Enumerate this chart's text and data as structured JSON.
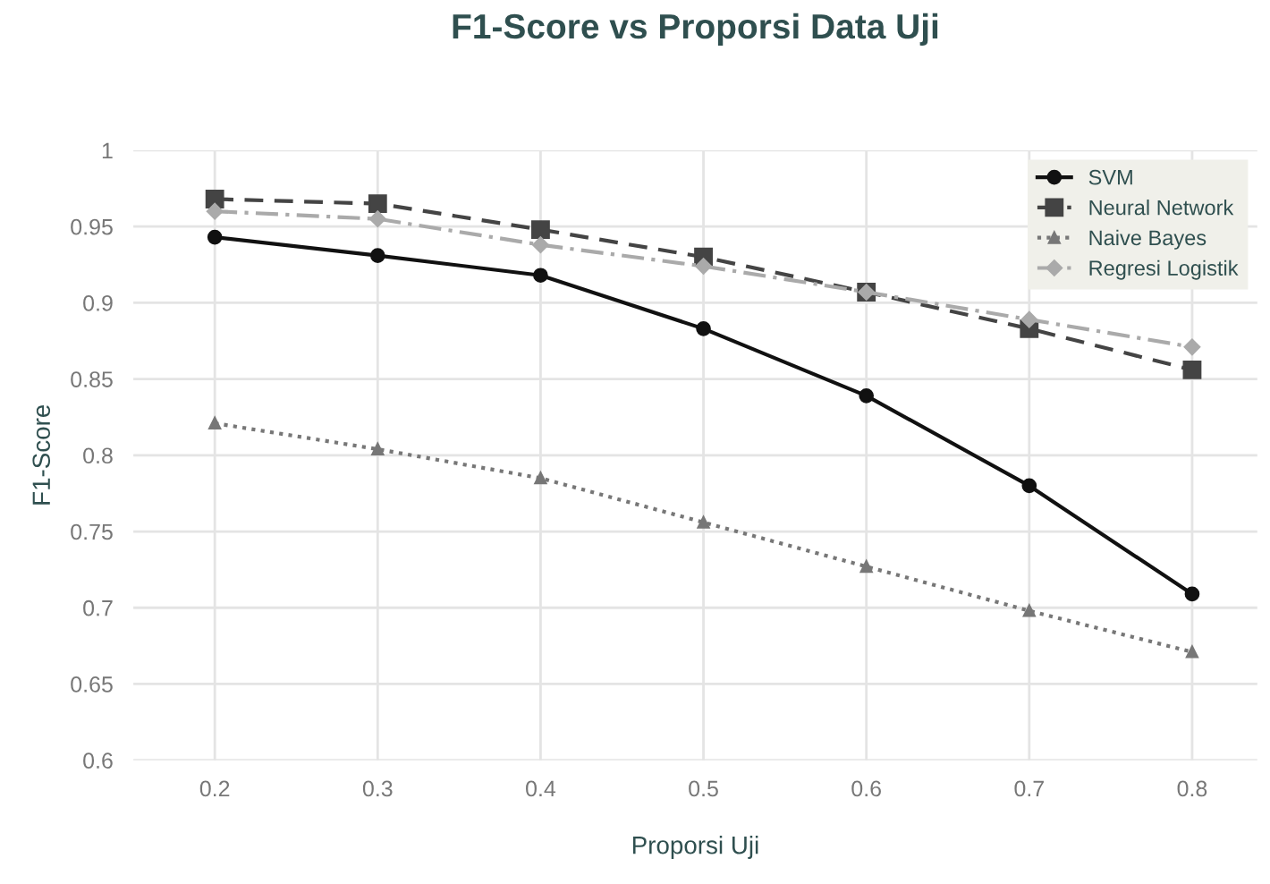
{
  "chart_data": {
    "type": "line",
    "title": "F1-Score vs Proporsi Data Uji",
    "xlabel": "Proporsi Uji",
    "ylabel": "F1-Score",
    "x": [
      0.2,
      0.3,
      0.4,
      0.5,
      0.6,
      0.7,
      0.8
    ],
    "series": [
      {
        "name": "SVM",
        "color": "#111111",
        "marker": "circle",
        "line_style": "solid",
        "values": [
          0.943,
          0.931,
          0.918,
          0.883,
          0.839,
          0.78,
          0.709
        ]
      },
      {
        "name": "Neural Network",
        "color": "#444444",
        "marker": "square",
        "line_style": "dashed",
        "values": [
          0.968,
          0.965,
          0.948,
          0.93,
          0.907,
          0.883,
          0.856
        ]
      },
      {
        "name": "Naive Bayes",
        "color": "#777777",
        "marker": "triangle",
        "line_style": "dotted",
        "values": [
          0.821,
          0.804,
          0.785,
          0.756,
          0.727,
          0.698,
          0.671
        ]
      },
      {
        "name": "Regresi Logistik",
        "color": "#aaaaaa",
        "marker": "diamond",
        "line_style": "dashdot",
        "values": [
          0.96,
          0.955,
          0.938,
          0.924,
          0.907,
          0.889,
          0.871
        ]
      }
    ],
    "xlim": [
      0.15,
      0.84
    ],
    "ylim": [
      0.6,
      1.0
    ],
    "xticks": [
      0.2,
      0.3,
      0.4,
      0.5,
      0.6,
      0.7,
      0.8
    ],
    "yticks": [
      0.6,
      0.65,
      0.7,
      0.75,
      0.8,
      0.85,
      0.9,
      0.95,
      {
        "value": 1,
        "label": "1"
      }
    ],
    "grid": true,
    "legend": "top right"
  }
}
